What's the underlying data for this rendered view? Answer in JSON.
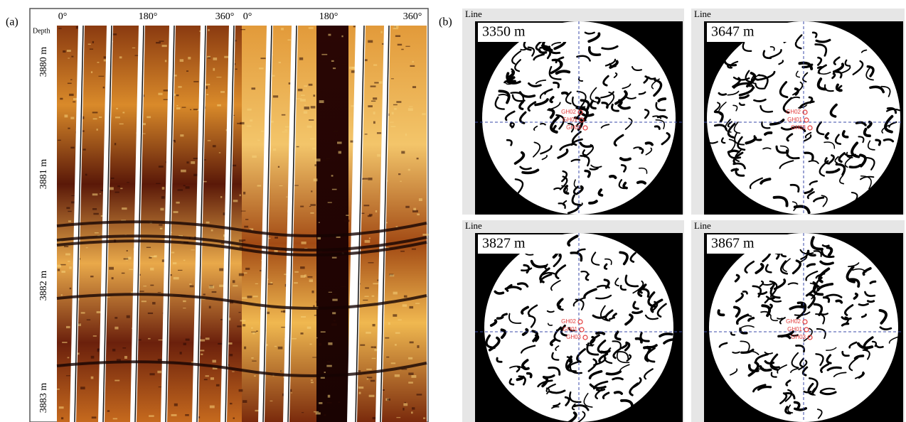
{
  "panel_a": {
    "label": "(a)",
    "azimuth_labels": [
      "0°",
      "180°",
      "360°",
      "0°",
      "180°",
      "360°"
    ],
    "depth_header": "Depth",
    "depth_labels": [
      "3880 m",
      "3881 m",
      "3882 m",
      "3883 m"
    ]
  },
  "panel_b": {
    "label": "(b)",
    "views": [
      {
        "line_label": "Line",
        "depth": "3350 m",
        "wells": [
          "GH02",
          "GH01",
          "GH03"
        ]
      },
      {
        "line_label": "Line",
        "depth": "3647 m",
        "wells": [
          "GH02",
          "GH01",
          "GH03"
        ]
      },
      {
        "line_label": "Line",
        "depth": "3827 m",
        "wells": [
          "GH02",
          "GH01",
          "GH03"
        ]
      },
      {
        "line_label": "Line",
        "depth": "3867 m",
        "wells": [
          "GH02",
          "GH01",
          "GH03"
        ]
      }
    ]
  }
}
